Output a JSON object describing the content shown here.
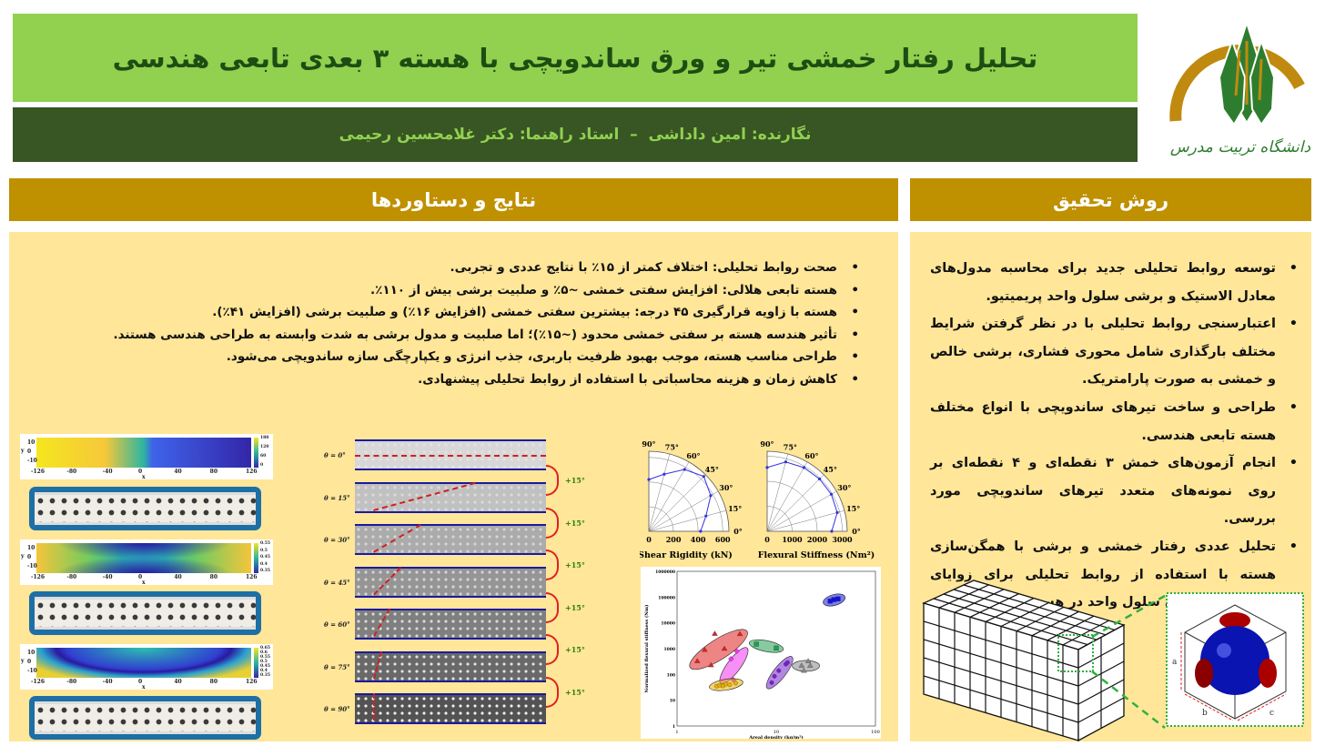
{
  "header": {
    "title": "تحلیل رفتار خمشی تیر و ورق ساندویچی با هسته ۳ بعدی تابعی هندسی",
    "authors": "نگارنده: امین داداشی  –  استاد راهنما: دکتر غلامحسین رحیمی",
    "logo_text": "دانشگاه تربیت مدرس"
  },
  "colors": {
    "title_bg": "#92d050",
    "author_bg": "#375623",
    "section_header": "#bf9000",
    "panel_bg": "#ffe699"
  },
  "results": {
    "heading": "نتایج و دستاوردها",
    "bullets": [
      "صحت روابط تحلیلی: اختلاف کمتر از ۱۵٪ با نتایج عددی و تجربی.",
      "هسته تابعی هلالی: افزایش سفتی خمشی ~۵٪ و صلبیت برشی بیش از ۱۱۰٪.",
      "هسته با زاویه قرارگیری ۴۵ درجه: بیشترین سفتی خمشی (افزایش ۱۶٪) و صلبیت برشی (افزایش ۴۱٪).",
      "تأثیر هندسه هسته بر سفتی خمشی محدود (~۱۵٪)؛ اما صلبیت و مدول برشی به شدت وابسته به طراحی هندسی هستند.",
      "طراحی مناسب هسته، موجب بهبود ظرفیت باربری، جذب انرژی و یکپارچگی سازه ساندویچی می‌شود.",
      "کاهش زمان و هزینه محاسباتی با استفاده از روابط تحلیلی پیشنهادی."
    ]
  },
  "method": {
    "heading": "روش تحقیق",
    "bullets": [
      "توسعه روابط تحلیلی جدید برای محاسبه مدول‌های معادل الاستیک و برشی سلول واحد پریمیتیو.",
      "اعتبارسنجی روابط تحلیلی با در نظر گرفتن شرایط مختلف بارگذاری شامل محوری فشاری، برشی خالص و خمشی به صورت پارامتریک.",
      "طراحی و ساخت تیرهای ساندویچی با انواع مختلف هسته تابعی هندسی.",
      "انجام آزمون‌های خمش ۳ نقطه‌ای و ۴ نقطه‌ای بر روی نمونه‌های متعدد تیرهای ساندویچی مورد بررسی.",
      "تحلیل عددی رفتار خمشی و برشی با همگن‌سازی هسته با استفاده از روابط تحلیلی برای زوایای مختلف قرارگیری سلول واحد در هسته."
    ],
    "unit_cell_labels": [
      "a",
      "b",
      "c"
    ]
  },
  "heatmaps": {
    "x_ticks": [
      "-126",
      "-80",
      "-40",
      "0",
      "40",
      "80",
      "126"
    ],
    "y_ticks": [
      "10",
      "0",
      "-10"
    ],
    "xlabel": "x",
    "ylabel": "y",
    "colorbars": [
      [
        "180",
        "120",
        "60",
        "0"
      ],
      [
        "0.55",
        "0.5",
        "0.45",
        "0.4",
        "0.35"
      ],
      [
        "0.65",
        "0.6",
        "0.55",
        "0.5",
        "0.45",
        "0.4",
        "0.35"
      ]
    ]
  },
  "orientation": {
    "labels": [
      "θ = 0°",
      "θ = 15°",
      "θ = 30°",
      "θ = 45°",
      "θ = 60°",
      "θ = 75°",
      "θ = 90°"
    ],
    "step": "+15°",
    "symbol": "θ"
  },
  "chart_data": [
    {
      "type": "polar",
      "xlabel": "Shear Rigidity (kN)",
      "angles": [
        0,
        15,
        30,
        45,
        60,
        75,
        90
      ],
      "angle_labels": [
        "0°",
        "15°",
        "30°",
        "45°",
        "60°",
        "75°",
        "90°"
      ],
      "r_ticks": [
        0,
        200,
        400,
        600
      ],
      "rlim": [
        0,
        650
      ],
      "values": [
        420,
        480,
        580,
        630,
        580,
        480,
        420
      ],
      "color": "#3333dd"
    },
    {
      "type": "polar",
      "xlabel": "Flexural Stiffness (Nm²)",
      "angles": [
        0,
        15,
        30,
        45,
        60,
        75,
        90
      ],
      "angle_labels": [
        "0°",
        "15°",
        "30°",
        "45°",
        "60°",
        "75°",
        "90°"
      ],
      "r_ticks": [
        0,
        1000,
        2000,
        3000
      ],
      "rlim": [
        0,
        3200
      ],
      "values": [
        2580,
        2900,
        2960,
        2960,
        2940,
        2870,
        2550
      ],
      "color": "#3333dd"
    },
    {
      "type": "scatter",
      "xlabel": "Areal density (kg/m²)",
      "ylabel": "Normalized flexural stiffness (Nm)",
      "xscale": "log",
      "yscale": "log",
      "xlim": [
        1,
        100
      ],
      "ylim": [
        1,
        1000000
      ],
      "x_ticks": [
        "1",
        "10",
        "100"
      ],
      "y_ticks": [
        "1",
        "10",
        "100",
        "1000",
        "10000",
        "100000",
        "1000000"
      ],
      "series": [
        {
          "color": "#e02020",
          "marker": "triangle",
          "points": [
            [
              1.6,
              330
            ],
            [
              1.9,
              900
            ],
            [
              2.2,
              230
            ],
            [
              2.4,
              3800
            ],
            [
              3,
              1000
            ],
            [
              4.3,
              3700
            ]
          ]
        },
        {
          "color": "#ee33ee",
          "marker": "diamond",
          "points": [
            [
              3.5,
              400
            ],
            [
              3.7,
              60
            ],
            [
              4,
              800
            ]
          ]
        },
        {
          "color": "#e8b000",
          "marker": "circle",
          "points": [
            [
              2.5,
              35
            ],
            [
              2.7,
              38
            ],
            [
              2.9,
              36
            ],
            [
              3.1,
              42
            ],
            [
              3.4,
              40
            ],
            [
              3.9,
              46
            ]
          ]
        },
        {
          "color": "#20a050",
          "marker": "square",
          "points": [
            [
              6.3,
              1500
            ],
            [
              10,
              1050
            ]
          ]
        },
        {
          "color": "#7722cc",
          "marker": "circle",
          "points": [
            [
              9,
              48
            ],
            [
              9.6,
              85
            ],
            [
              10.6,
              140
            ],
            [
              12.5,
              250
            ],
            [
              13,
              290
            ]
          ]
        },
        {
          "color": "#888888",
          "marker": "triangle",
          "points": [
            [
              18,
              220
            ],
            [
              19,
              140
            ],
            [
              21,
              330
            ],
            [
              22,
              220
            ]
          ]
        },
        {
          "color": "#1010e0",
          "marker": "square",
          "points": [
            [
              35,
              70000
            ],
            [
              38,
              80000
            ],
            [
              42,
              85000
            ]
          ]
        }
      ]
    }
  ]
}
